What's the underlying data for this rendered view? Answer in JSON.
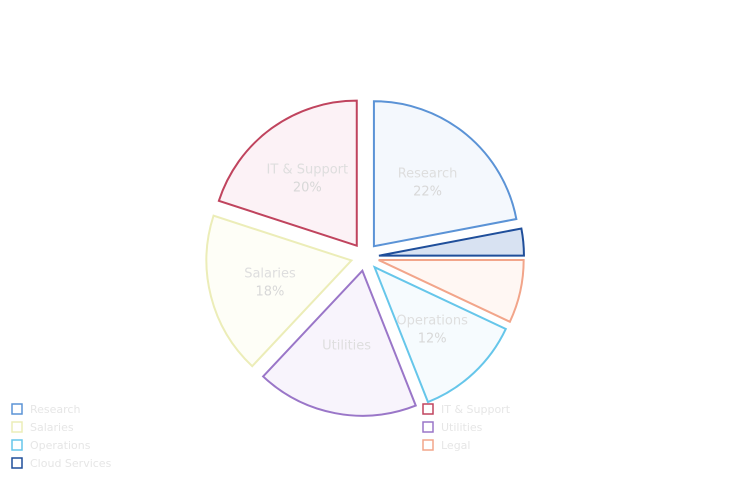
{
  "chart_data": {
    "type": "pie",
    "style": "exploded",
    "title": "",
    "slices": [
      {
        "label": "Research",
        "value": 22,
        "display": "22%",
        "stroke": "#5b93d6",
        "fill": "#f4f8fd"
      },
      {
        "label": "Cloud Services",
        "value": 3,
        "display": "",
        "stroke": "#1f4e9a",
        "fill": "#d8e2f2"
      },
      {
        "label": "Legal",
        "value": 7,
        "display": "",
        "stroke": "#f2a58a",
        "fill": "#fff7f3"
      },
      {
        "label": "Operations",
        "value": 12,
        "display": "12%",
        "stroke": "#66c6ea",
        "fill": "#f6fbfe"
      },
      {
        "label": "Utilities",
        "value": 18,
        "display": "",
        "stroke": "#9a76c8",
        "fill": "#f8f4fc"
      },
      {
        "label": "Salaries",
        "value": 18,
        "display": "18%",
        "stroke": "#ecedb8",
        "fill": "#fefef7"
      },
      {
        "label": "IT & Support",
        "value": 20,
        "display": "20%",
        "stroke": "#c0445e",
        "fill": "#fcf2f6"
      }
    ],
    "legend": {
      "position": "bottom",
      "entries": [
        {
          "label": "Research",
          "color": "#5b93d6"
        },
        {
          "label": "Salaries",
          "color": "#ecedb8"
        },
        {
          "label": "Operations",
          "color": "#66c6ea"
        },
        {
          "label": "Cloud Services",
          "color": "#1f4e9a"
        },
        {
          "label": "IT & Support",
          "color": "#c0445e"
        },
        {
          "label": "Utilities",
          "color": "#9a76c8"
        },
        {
          "label": "Legal",
          "color": "#f2a58a"
        }
      ]
    }
  }
}
